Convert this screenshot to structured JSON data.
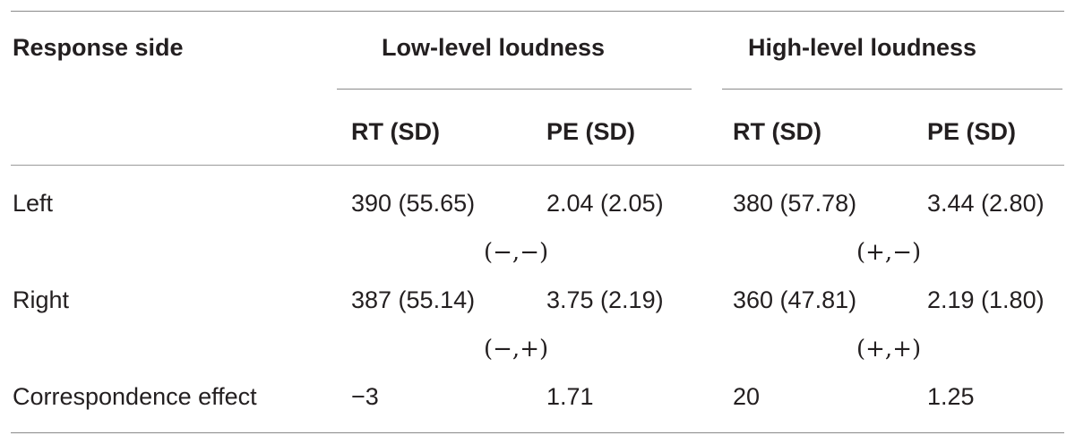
{
  "header": {
    "row_label": "Response side",
    "group1": "Low-level loudness",
    "group2": "High-level loudness",
    "sub": [
      "RT (SD)",
      "PE (SD)",
      "RT (SD)",
      "PE (SD)"
    ]
  },
  "rows": [
    {
      "label": "Left",
      "cells": [
        "390 (55.65)",
        "2.04 (2.05)",
        "380 (57.78)",
        "3.44 (2.80)"
      ]
    },
    {
      "label": "Right",
      "cells": [
        "387 (55.14)",
        "3.75 (2.19)",
        "360 (47.81)",
        "2.19 (1.80)"
      ]
    },
    {
      "label": "Correspondence effect",
      "cells": [
        "−3",
        "1.71",
        "20",
        "1.25"
      ]
    }
  ],
  "signs": {
    "left_low": "(−,−)",
    "left_high": "(+,−)",
    "right_low": "(−,+)",
    "right_high": "(+,+)"
  }
}
